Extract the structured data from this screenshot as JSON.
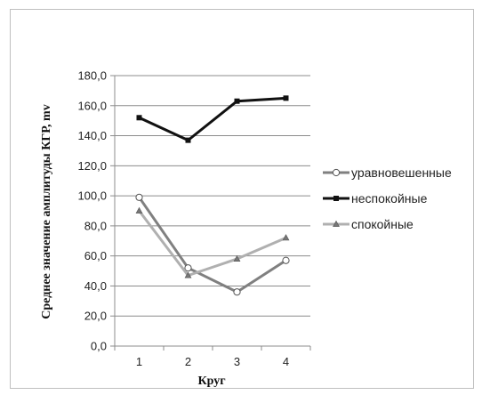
{
  "chart_data": {
    "type": "line",
    "title": "",
    "xlabel": "Круг",
    "ylabel": "Среднее значение амплитуды КГР, mv",
    "categories": [
      "1",
      "2",
      "3",
      "4"
    ],
    "ylim": [
      0,
      180
    ],
    "ytick_step": 20,
    "ytick_labels": [
      "0,0",
      "20,0",
      "40,0",
      "60,0",
      "80,0",
      "100,0",
      "120,0",
      "140,0",
      "160,0",
      "180,0"
    ],
    "grid": true,
    "legend_position": "right",
    "series": [
      {
        "name": "уравновешенные",
        "values": [
          99,
          52,
          36,
          57
        ],
        "color": "#808080",
        "marker": "circle"
      },
      {
        "name": "неспокойные",
        "values": [
          152,
          137,
          163,
          165
        ],
        "color": "#111111",
        "marker": "square"
      },
      {
        "name": "спокойные",
        "values": [
          90,
          47,
          58,
          72
        ],
        "color": "#b0b0b0",
        "marker": "triangle"
      }
    ]
  }
}
